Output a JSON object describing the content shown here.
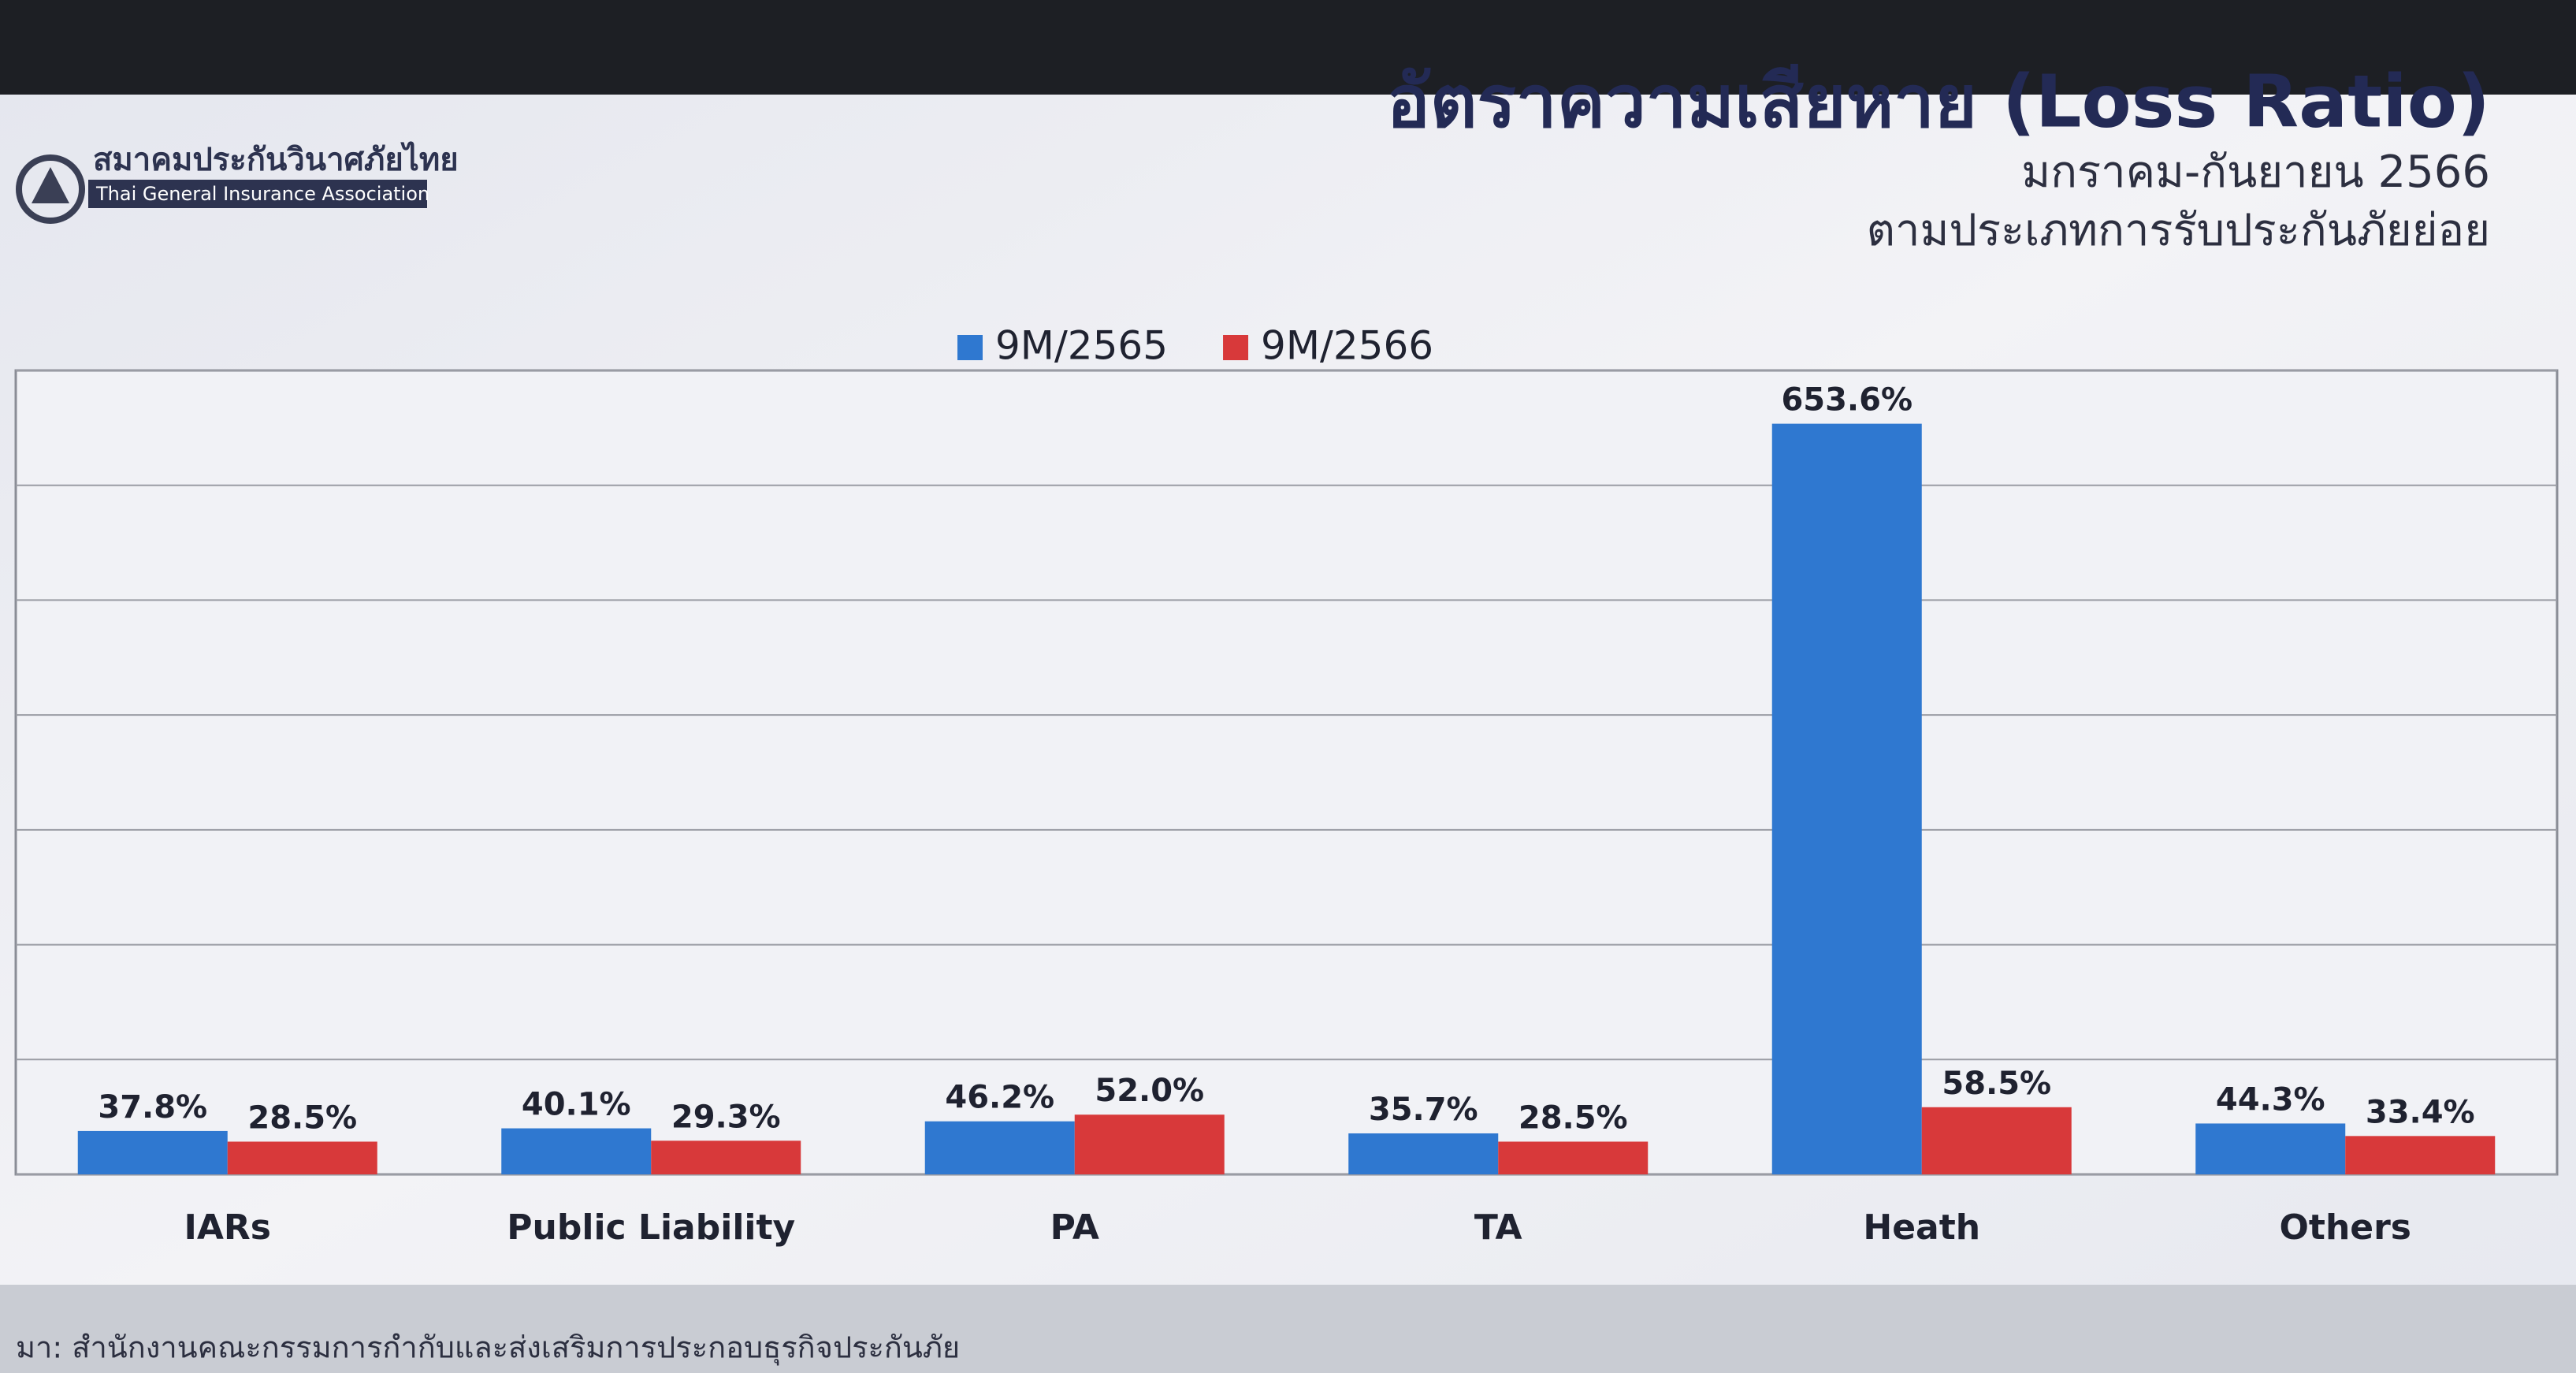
{
  "logo": {
    "name": "สมาคมประกันวินาศภัยไทย",
    "subname": "Thai General Insurance Association"
  },
  "chart_data": {
    "type": "bar",
    "title": "อัตราความเสียหาย (Loss Ratio)",
    "subtitle": [
      "มกราคม-กันยายน 2566",
      "ตามประเภทการรับประกันภัยย่อย"
    ],
    "categories": [
      "IARs",
      "Public Liability",
      "PA",
      "TA",
      "Heath",
      "Others"
    ],
    "series": [
      {
        "name": "9M/2565",
        "color": "#2f78d0",
        "values": [
          37.8,
          40.1,
          46.2,
          35.7,
          653.6,
          44.3
        ],
        "value_labels": [
          "37.8%",
          "40.1%",
          "46.2%",
          "35.7%",
          "653.6%",
          "44.3%"
        ]
      },
      {
        "name": "9M/2566",
        "color": "#d8393a",
        "values": [
          28.5,
          29.3,
          52.0,
          28.5,
          58.5,
          33.4
        ],
        "value_labels": [
          "28.5%",
          "29.3%",
          "52.0%",
          "28.5%",
          "58.5%",
          "33.4%"
        ]
      }
    ],
    "ylim": [
      0,
      700
    ],
    "yticks": [
      0,
      100,
      200,
      300,
      400,
      500,
      600,
      700
    ],
    "grid": true,
    "show_tick_labels": false,
    "source": "มา: สำนักงานคณะกรรมการกำกับและส่งเสริมการประกอบธุรกิจประกันภัย"
  }
}
